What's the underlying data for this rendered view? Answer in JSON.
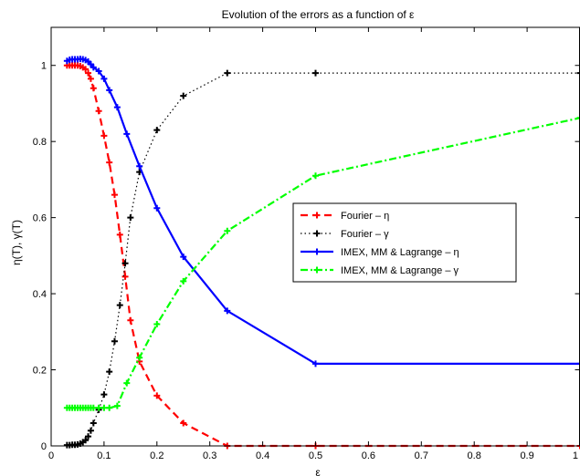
{
  "chart_data": {
    "type": "line",
    "title": "Evolution of the errors as a function of ε",
    "xlabel": "ε",
    "ylabel": "η(T), γ(T)",
    "xlim": [
      0,
      1
    ],
    "ylim": [
      0,
      1.1
    ],
    "xticks": [
      0,
      0.1,
      0.2,
      0.3,
      0.4,
      0.5,
      0.6,
      0.7,
      0.8,
      0.9,
      1
    ],
    "xtick_labels": [
      "0",
      "0.1",
      "0.2",
      "0.3",
      "0.4",
      "0.5",
      "0.6",
      "0.7",
      "0.8",
      "0.9",
      "1"
    ],
    "yticks": [
      0,
      0.2,
      0.4,
      0.6,
      0.8,
      1
    ],
    "ytick_labels": [
      "0",
      "0.2",
      "0.4",
      "0.6",
      "0.8",
      "1"
    ],
    "grid": false,
    "legend_position": "center-right",
    "series": [
      {
        "name": "Fourier – η",
        "color": "#ff0000",
        "linestyle": "dashed",
        "marker": "plus",
        "x": [
          0.03,
          0.035,
          0.04,
          0.045,
          0.05,
          0.055,
          0.06,
          0.065,
          0.07,
          0.075,
          0.08,
          0.09,
          0.1,
          0.11,
          0.12,
          0.13,
          0.14,
          0.15,
          0.167,
          0.2,
          0.25,
          0.333,
          0.5,
          1.0
        ],
        "y": [
          1.0,
          1.0,
          1.0,
          1.0,
          1.0,
          0.998,
          0.995,
          0.99,
          0.98,
          0.965,
          0.94,
          0.88,
          0.815,
          0.745,
          0.66,
          0.555,
          0.445,
          0.33,
          0.222,
          0.132,
          0.06,
          0.0,
          0.0,
          0.0
        ]
      },
      {
        "name": "Fourier – γ",
        "color": "#000000",
        "linestyle": "dotted",
        "marker": "plus",
        "x": [
          0.03,
          0.035,
          0.04,
          0.045,
          0.05,
          0.055,
          0.06,
          0.065,
          0.07,
          0.075,
          0.08,
          0.09,
          0.1,
          0.11,
          0.12,
          0.13,
          0.14,
          0.15,
          0.167,
          0.2,
          0.25,
          0.333,
          0.5,
          1.0
        ],
        "y": [
          0.002,
          0.002,
          0.003,
          0.003,
          0.004,
          0.006,
          0.01,
          0.015,
          0.025,
          0.04,
          0.06,
          0.095,
          0.135,
          0.195,
          0.275,
          0.37,
          0.48,
          0.6,
          0.72,
          0.83,
          0.92,
          0.98,
          0.98,
          0.98
        ]
      },
      {
        "name": "IMEX, MM & Lagrange – η",
        "color": "#0000ff",
        "linestyle": "solid",
        "marker": "plus",
        "x": [
          0.03,
          0.035,
          0.04,
          0.045,
          0.05,
          0.055,
          0.06,
          0.065,
          0.07,
          0.075,
          0.08,
          0.09,
          0.1,
          0.11,
          0.125,
          0.143,
          0.167,
          0.2,
          0.25,
          0.333,
          0.5,
          1.0
        ],
        "y": [
          1.012,
          1.015,
          1.016,
          1.016,
          1.016,
          1.017,
          1.016,
          1.014,
          1.01,
          1.003,
          0.995,
          0.985,
          0.965,
          0.935,
          0.89,
          0.82,
          0.735,
          0.625,
          0.497,
          0.355,
          0.216,
          0.216
        ]
      },
      {
        "name": "IMEX, MM & Lagrange – γ",
        "color": "#00ff00",
        "linestyle": "dashdot",
        "marker": "plus",
        "x": [
          0.03,
          0.035,
          0.04,
          0.045,
          0.05,
          0.055,
          0.06,
          0.065,
          0.07,
          0.075,
          0.08,
          0.09,
          0.1,
          0.11,
          0.125,
          0.143,
          0.167,
          0.2,
          0.25,
          0.333,
          0.5,
          1.0
        ],
        "y": [
          0.1,
          0.1,
          0.1,
          0.1,
          0.1,
          0.1,
          0.1,
          0.1,
          0.1,
          0.1,
          0.1,
          0.1,
          0.1,
          0.1,
          0.105,
          0.165,
          0.232,
          0.32,
          0.433,
          0.565,
          0.71,
          0.862
        ]
      }
    ]
  }
}
